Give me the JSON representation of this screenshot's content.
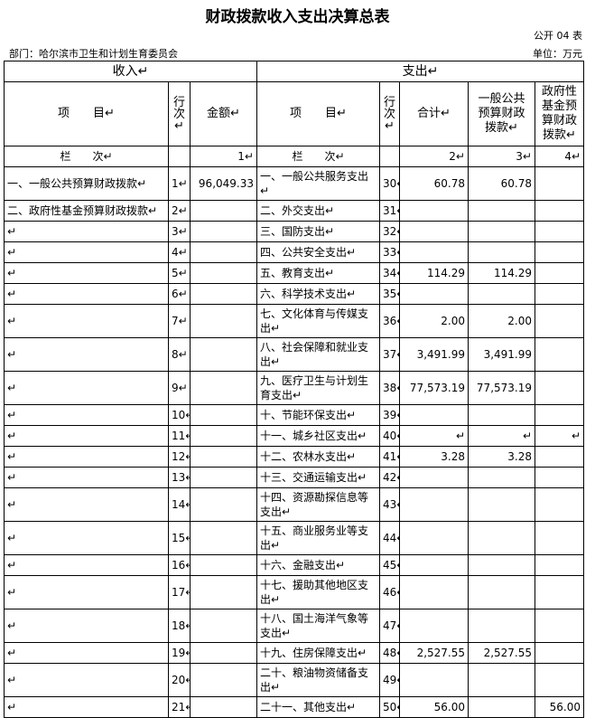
{
  "header": {
    "title": "财政拨款收入支出决算总表",
    "form_no": "公开 04 表",
    "department": "部门：哈尔滨市卫生和计划生育委员会",
    "unit": "单位：万元"
  },
  "table": {
    "income_header": "收入↵",
    "expense_header": "支出↵",
    "columns": [
      "项　　目↵",
      "行\n次↵",
      "金额↵",
      "项　　目↵",
      "行\n次↵",
      "合计↵",
      "一般公共\n预算财政\n拨款↵",
      "政府性\n基金预\n算财政\n拨款↵"
    ],
    "column_numbers": [
      "栏　　次↵",
      null,
      "1↵",
      "栏　　次↵",
      null,
      "2↵",
      "3↵",
      "4↵"
    ],
    "rows": [
      [
        "一、一般公共预算财政拨款↵",
        "1↵",
        "96,049.33",
        "一、一般公共服务支出↵",
        "30↵",
        "60.78",
        "60.78",
        null
      ],
      [
        "二、政府性基金预算财政拨款↵",
        "2↵",
        null,
        "二、外交支出↵",
        "31↵",
        null,
        null,
        null
      ],
      [
        "↵",
        "3↵",
        null,
        "三、国防支出↵",
        "32↵",
        null,
        null,
        null
      ],
      [
        "↵",
        "4↵",
        null,
        "四、公共安全支出↵",
        "33↵",
        null,
        null,
        null
      ],
      [
        "↵",
        "5↵",
        null,
        "五、教育支出↵",
        "34↵",
        "114.29",
        "114.29",
        null
      ],
      [
        "↵",
        "6↵",
        null,
        "六、科学技术支出↵",
        "35↵",
        null,
        null,
        null
      ],
      [
        "↵",
        "7↵",
        null,
        "七、文化体育与传媒支出↵",
        "36↵",
        "2.00",
        "2.00",
        null
      ],
      [
        "↵",
        "8↵",
        null,
        "八、社会保障和就业支出↵",
        "37↵",
        "3,491.99",
        "3,491.99",
        null
      ],
      [
        "↵",
        "9↵",
        null,
        "九、医疗卫生与计划生育支出↵",
        "38↵",
        "77,573.19",
        "77,573.19",
        null
      ],
      [
        "↵",
        "10↵",
        null,
        "十、节能环保支出↵",
        "39↵",
        null,
        null,
        null
      ],
      [
        "↵",
        "11↵",
        null,
        "十一、城乡社区支出↵",
        "40↵",
        "↵",
        "↵",
        "↵"
      ],
      [
        "↵",
        "12↵",
        null,
        "十二、农林水支出↵",
        "41↵",
        "3.28",
        "3.28",
        null
      ],
      [
        "↵",
        "13↵",
        null,
        "十三、交通运输支出↵",
        "42↵",
        null,
        null,
        null
      ],
      [
        "↵",
        "14↵",
        null,
        "十四、资源勘探信息等支出↵",
        "43↵",
        null,
        null,
        null
      ],
      [
        "↵",
        "15↵",
        null,
        "十五、商业服务业等支出↵",
        "44↵",
        null,
        null,
        null
      ],
      [
        "↵",
        "16↵",
        null,
        "十六、金融支出↵",
        "45↵",
        null,
        null,
        null
      ],
      [
        "↵",
        "17↵",
        null,
        "十七、援助其他地区支出↵",
        "46↵",
        null,
        null,
        null
      ],
      [
        "↵",
        "18↵",
        null,
        "十八、国土海洋气象等支出↵",
        "47↵",
        null,
        null,
        null
      ],
      [
        "↵",
        "19↵",
        null,
        "十九、住房保障支出↵",
        "48↵",
        "2,527.55",
        "2,527.55",
        null
      ],
      [
        "↵",
        "20↵",
        null,
        "二十、粮油物资储备支出↵",
        "49↵",
        null,
        null,
        null
      ],
      [
        "↵",
        "21↵",
        null,
        "二十一、其他支出↵",
        "50↵",
        "56.00",
        null,
        "56.00"
      ]
    ]
  }
}
